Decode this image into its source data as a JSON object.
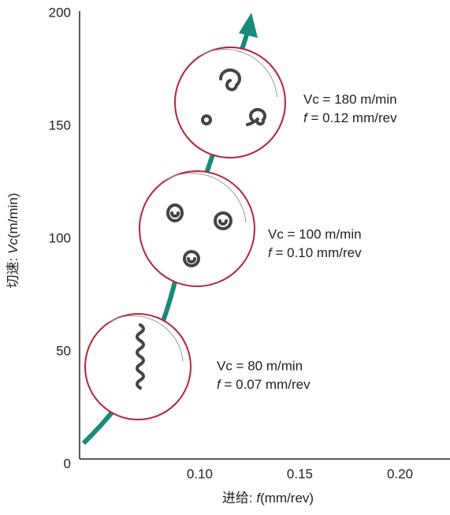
{
  "chart_data": {
    "type": "annotated-arrow",
    "xlabel": {
      "prefix": "进给: ",
      "symbol": "f",
      "unit": "(mm/rev)"
    },
    "ylabel": {
      "prefix": "切速: ",
      "symbol": "Vc",
      "unit": "(m/min)"
    },
    "xlim": [
      0.04,
      0.225
    ],
    "xticks": [
      {
        "value": 0.1,
        "label": "0.10"
      },
      {
        "value": 0.15,
        "label": "0.15"
      },
      {
        "value": 0.2,
        "label": "0.20"
      }
    ],
    "ylim": [
      0,
      200
    ],
    "yticks": [
      0,
      50,
      100,
      150,
      200
    ],
    "arrow_color": "#1a8a7a",
    "circle_color": "#b5243a",
    "annotations": [
      {
        "vc_text": "Vc = 80 m/min",
        "f_symbol": "f",
        "f_text": " = 0.07 mm/rev"
      },
      {
        "vc_text": "Vc = 100 m/min",
        "f_symbol": "f",
        "f_text": " = 0.10 mm/rev"
      },
      {
        "vc_text": "Vc = 180 m/min",
        "f_symbol": "f",
        "f_text": " = 0.12 mm/rev"
      }
    ]
  }
}
